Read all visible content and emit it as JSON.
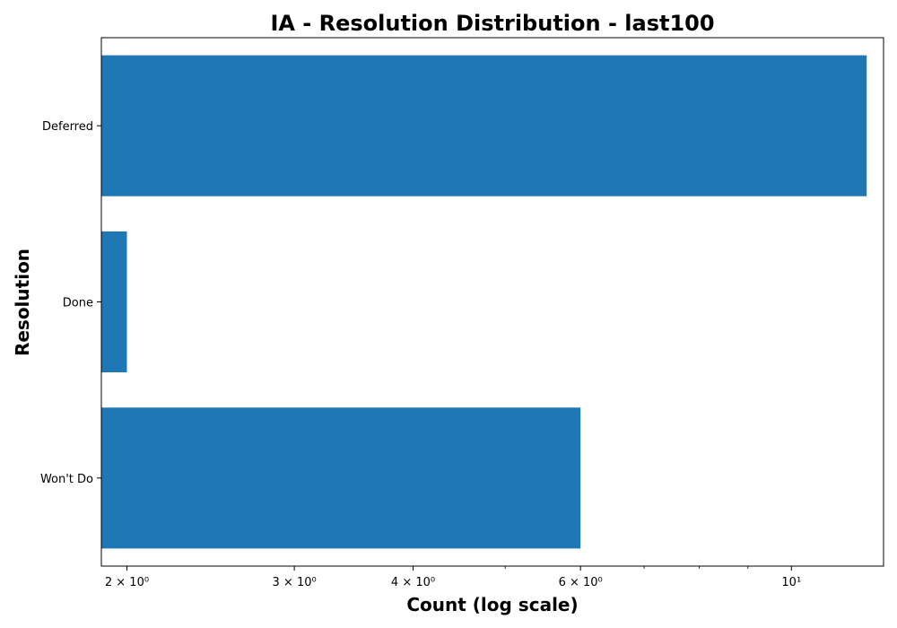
{
  "chart_data": {
    "type": "bar",
    "orientation": "horizontal",
    "title": "IA - Resolution Distribution - last100",
    "xlabel": "Count (log scale)",
    "ylabel": "Resolution",
    "x_scale": "log",
    "xlim": [
      1.88,
      12.5
    ],
    "categories": [
      "Deferred",
      "Done",
      "Won't Do"
    ],
    "values": [
      12,
      2,
      6
    ],
    "bar_color": "#1f77b4",
    "grid": false,
    "x_ticks": [
      {
        "value": 2,
        "label": "2 × 10⁰"
      },
      {
        "value": 3,
        "label": "3 × 10⁰"
      },
      {
        "value": 4,
        "label": "4 × 10⁰"
      },
      {
        "value": 6,
        "label": "6 × 10⁰"
      },
      {
        "value": 10,
        "label": "10¹"
      }
    ],
    "x_minor_ticks": [
      5,
      7,
      8,
      9
    ]
  }
}
